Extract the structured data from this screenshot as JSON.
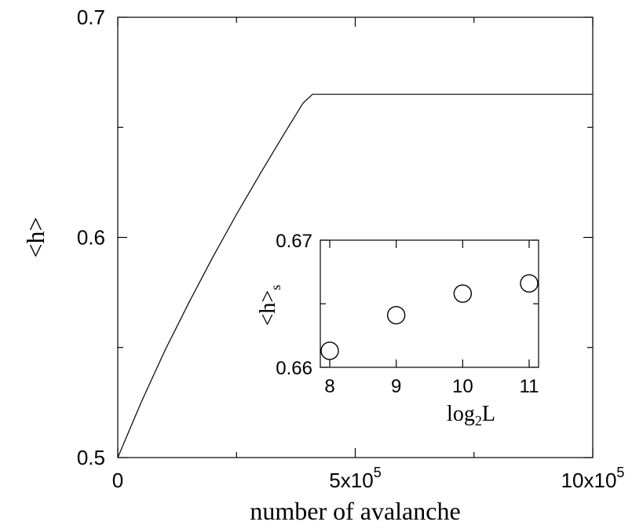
{
  "chart_data": [
    {
      "type": "line",
      "xlabel": "number of avalanche",
      "ylabel": "<h>",
      "xlim": [
        0,
        1000000
      ],
      "ylim": [
        0.5,
        0.7
      ],
      "xticks": [
        {
          "value": 0,
          "label": "0",
          "exp": ""
        },
        {
          "value": 500000,
          "label": "5x10",
          "exp": "5"
        },
        {
          "value": 1000000,
          "label": "10x10",
          "exp": "5"
        }
      ],
      "yticks": [
        {
          "value": 0.5,
          "label": "0.5"
        },
        {
          "value": 0.6,
          "label": "0.6"
        },
        {
          "value": 0.7,
          "label": "0.7"
        }
      ],
      "series": [
        {
          "x": [
            0,
            50000,
            100000,
            150000,
            200000,
            250000,
            300000,
            350000,
            390000,
            410000,
            500000,
            600000,
            700000,
            800000,
            900000,
            1000000
          ],
          "y": [
            0.5,
            0.5255,
            0.549,
            0.5705,
            0.591,
            0.6105,
            0.629,
            0.647,
            0.661,
            0.665,
            0.665,
            0.665,
            0.665,
            0.665,
            0.665,
            0.665
          ]
        }
      ]
    },
    {
      "type": "scatter",
      "xlabel": "log",
      "xlabel_sub": "2",
      "xlabel_after": "L",
      "ylabel": "<h>",
      "ylabel_sub": "s",
      "xlim": [
        8,
        11
      ],
      "ylim": [
        0.66,
        0.67
      ],
      "xticks": [
        "8",
        "9",
        "10",
        "11"
      ],
      "yticks": [
        {
          "value": 0.66,
          "label": "0.66"
        },
        {
          "value": 0.67,
          "label": "0.67"
        }
      ],
      "points": [
        {
          "x": 8,
          "y": 0.6613
        },
        {
          "x": 9,
          "y": 0.6641
        },
        {
          "x": 10,
          "y": 0.6658
        },
        {
          "x": 11,
          "y": 0.6666
        }
      ]
    }
  ]
}
